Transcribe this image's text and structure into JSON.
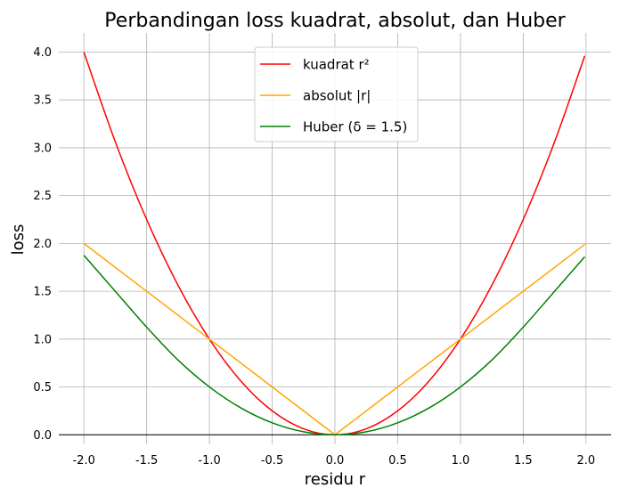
{
  "chart_data": {
    "type": "line",
    "title": "Perbandingan loss kuadrat, absolut, dan Huber",
    "xlabel": "residu r",
    "ylabel": "loss",
    "xlim": [
      -2.2,
      2.2
    ],
    "ylim": [
      -0.1,
      4.2
    ],
    "xticks": [
      -2.0,
      -1.5,
      -1.0,
      -0.5,
      0.0,
      0.5,
      1.0,
      1.5,
      2.0
    ],
    "yticks": [
      0.0,
      0.5,
      1.0,
      1.5,
      2.0,
      2.5,
      3.0,
      3.5,
      4.0
    ],
    "xtick_labels": [
      "-2.0",
      "-1.5",
      "-1.0",
      "-0.5",
      "0.0",
      "0.5",
      "1.0",
      "1.5",
      "2.0"
    ],
    "ytick_labels": [
      "0.0",
      "0.5",
      "1.0",
      "1.5",
      "2.0",
      "2.5",
      "3.0",
      "3.5",
      "4.0"
    ],
    "grid": true,
    "legend_position": "top-center",
    "series": [
      {
        "name": "kuadrat r²",
        "color": "#ff0000",
        "x": [
          -2.0,
          -1.75,
          -1.5,
          -1.25,
          -1.0,
          -0.75,
          -0.5,
          -0.25,
          0.0,
          0.25,
          0.5,
          0.75,
          1.0,
          1.25,
          1.5,
          1.75,
          1.99
        ],
        "y": [
          4.0,
          3.0625,
          2.25,
          1.5625,
          1.0,
          0.5625,
          0.25,
          0.0625,
          0.0,
          0.0625,
          0.25,
          0.5625,
          1.0,
          1.5625,
          2.25,
          3.0625,
          3.9601
        ]
      },
      {
        "name": "absolut |r|",
        "color": "#ffa500",
        "x": [
          -2.0,
          -1.0,
          0.0,
          1.0,
          1.99
        ],
        "y": [
          2.0,
          1.0,
          0.0,
          1.0,
          1.99
        ]
      },
      {
        "name": "Huber (δ = 1.5)",
        "color": "#008000",
        "x": [
          -2.0,
          -1.75,
          -1.5,
          -1.25,
          -1.0,
          -0.75,
          -0.5,
          -0.25,
          0.0,
          0.25,
          0.5,
          0.75,
          1.0,
          1.25,
          1.5,
          1.75,
          1.99
        ],
        "y": [
          1.875,
          1.5,
          1.125,
          0.78125,
          0.5,
          0.28125,
          0.125,
          0.03125,
          0.0,
          0.03125,
          0.125,
          0.28125,
          0.5,
          0.78125,
          1.125,
          1.5,
          1.86
        ]
      }
    ]
  }
}
